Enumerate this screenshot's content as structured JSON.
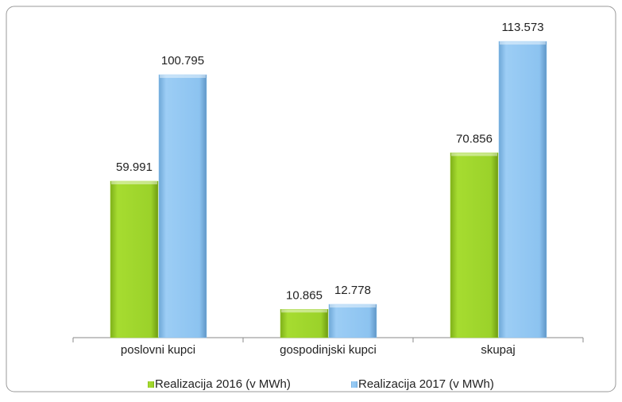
{
  "chart_data": {
    "type": "bar",
    "categories": [
      "poslovni kupci",
      "gospodinjski kupci",
      "skupaj"
    ],
    "series": [
      {
        "name": "Realizacija 2016 (v MWh)",
        "color": "#9bd22a",
        "values": [
          59991,
          10865,
          70856
        ],
        "value_labels": [
          "59.991",
          "10.865",
          "70.856"
        ]
      },
      {
        "name": "Realizacija 2017 (v MWh)",
        "color": "#8cc3f0",
        "values": [
          100795,
          12778,
          113573
        ],
        "value_labels": [
          "100.795",
          "12.778",
          "113.573"
        ]
      }
    ],
    "ylim": [
      0,
      120000
    ]
  }
}
